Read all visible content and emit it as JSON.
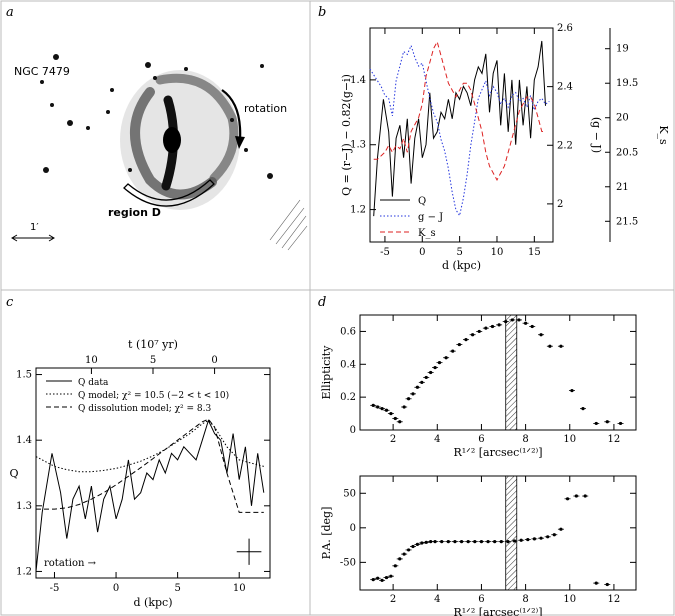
{
  "panels": {
    "a": {
      "letter": "a",
      "galaxy_label": "NGC 7479",
      "rotation_label": "rotation",
      "region_label": "region D",
      "scale_label": "1′"
    },
    "b": {
      "letter": "b"
    },
    "c": {
      "letter": "c"
    },
    "d": {
      "letter": "d"
    }
  },
  "chart_data": [
    {
      "panel": "b",
      "type": "line",
      "xlabel": "d (kpc)",
      "ylabel_left": "Q = (r−J) − 0.82(g−i)",
      "ylabel_right1": "(g − J)",
      "ylabel_right2": "K_s",
      "xlim": [
        -7,
        17.5
      ],
      "ylim_left": [
        1.15,
        1.48
      ],
      "ylim_right1": [
        1.87,
        2.6
      ],
      "ylim_right2": [
        21.8,
        18.7
      ],
      "xticks": [
        -5,
        0,
        5,
        10,
        15
      ],
      "yticks_left": [
        1.2,
        1.3,
        1.4
      ],
      "yticks_right1": [
        2,
        2.2,
        2.4,
        2.6
      ],
      "yticks_right2": [
        19,
        19.5,
        20,
        20.5,
        21,
        21.5
      ],
      "legend": [
        "Q",
        "g − J",
        "K_s"
      ],
      "series": [
        {
          "name": "Q",
          "color": "#000000",
          "dash": "solid",
          "axis": "left",
          "x": [
            -6.5,
            -6,
            -5.2,
            -4.5,
            -4,
            -3.5,
            -3,
            -2.5,
            -2,
            -1.5,
            -1,
            -0.5,
            0,
            0.5,
            1,
            1.5,
            2,
            2.5,
            3,
            3.5,
            4,
            4.5,
            5,
            5.5,
            6,
            6.5,
            7,
            7.5,
            8,
            8.5,
            9,
            9.5,
            10,
            10.5,
            11,
            11.5,
            12,
            12.5,
            13,
            13.5,
            14,
            14.5,
            15,
            15.5,
            16,
            16.5
          ],
          "y": [
            1.19,
            1.28,
            1.37,
            1.32,
            1.22,
            1.31,
            1.33,
            1.28,
            1.34,
            1.24,
            1.31,
            1.34,
            1.28,
            1.3,
            1.38,
            1.31,
            1.32,
            1.35,
            1.34,
            1.37,
            1.34,
            1.38,
            1.37,
            1.39,
            1.38,
            1.36,
            1.4,
            1.42,
            1.41,
            1.44,
            1.35,
            1.41,
            1.43,
            1.33,
            1.41,
            1.32,
            1.4,
            1.3,
            1.4,
            1.33,
            1.39,
            1.31,
            1.4,
            1.42,
            1.46,
            1.36
          ]
        },
        {
          "name": "g − J",
          "color": "#2233dd",
          "dash": "dotted",
          "axis": "right1",
          "x": [
            -7,
            -6.5,
            -6,
            -5.5,
            -5,
            -4.5,
            -4,
            -3.5,
            -3,
            -2.5,
            -2,
            -1.5,
            -1,
            -0.5,
            0,
            0.5,
            1,
            1.5,
            2,
            2.5,
            3,
            3.5,
            4,
            4.5,
            5,
            5.5,
            6,
            6.5,
            7,
            7.5,
            8,
            8.5,
            9,
            9.5,
            10,
            10.5,
            11,
            11.5,
            12,
            12.5,
            13,
            13.5,
            14,
            14.5,
            15,
            15.5,
            16,
            16.5,
            17
          ],
          "y": [
            2.46,
            2.44,
            2.42,
            2.4,
            2.37,
            2.36,
            2.3,
            2.42,
            2.47,
            2.52,
            2.51,
            2.54,
            2.5,
            2.47,
            2.48,
            2.42,
            2.36,
            2.31,
            2.28,
            2.22,
            2.18,
            2.12,
            2.04,
            1.98,
            1.96,
            2.02,
            2.1,
            2.2,
            2.28,
            2.36,
            2.39,
            2.42,
            2.37,
            2.4,
            2.38,
            2.34,
            2.36,
            2.33,
            2.37,
            2.38,
            2.35,
            2.36,
            2.33,
            2.37,
            2.32,
            2.35,
            2.36,
            2.34,
            2.35
          ]
        },
        {
          "name": "K_s",
          "color": "#dd2222",
          "dash": "dashed",
          "axis": "right2",
          "x": [
            -6.5,
            -6,
            -5.5,
            -5,
            -4.5,
            -4,
            -3.5,
            -3,
            -2.5,
            -2,
            -1.5,
            -1,
            -0.5,
            0,
            0.5,
            1,
            1.5,
            2,
            2.5,
            3,
            3.5,
            4,
            4.5,
            5,
            5.5,
            6,
            6.5,
            7,
            7.5,
            8,
            8.5,
            9,
            9.5,
            10,
            10.5,
            11,
            11.5,
            12,
            12.5,
            13,
            13.5,
            14,
            14.5,
            15,
            15.5,
            16,
            16.5
          ],
          "y": [
            20.6,
            20.6,
            20.55,
            20.5,
            20.4,
            20.5,
            20.4,
            20.45,
            20.3,
            20.5,
            20.2,
            20.1,
            20.0,
            19.8,
            19.4,
            19.2,
            19.0,
            18.9,
            19.1,
            19.3,
            19.5,
            19.6,
            19.7,
            19.6,
            19.5,
            19.5,
            19.6,
            19.8,
            20.0,
            20.2,
            20.5,
            20.7,
            20.8,
            20.9,
            20.8,
            20.7,
            20.5,
            20.3,
            20.1,
            19.9,
            19.8,
            19.7,
            19.7,
            19.8,
            20.0,
            20.2,
            20.2
          ]
        }
      ]
    },
    {
      "panel": "c",
      "type": "line",
      "xlabel": "d (kpc)",
      "ylabel": "Q",
      "top_xlabel": "t (10⁷ yr)",
      "xlim": [
        -6.5,
        12.5
      ],
      "ylim": [
        1.19,
        1.51
      ],
      "xticks": [
        -5,
        0,
        5,
        10
      ],
      "yticks": [
        1.2,
        1.3,
        1.4,
        1.5
      ],
      "top_xticks": [
        10,
        5,
        0
      ],
      "top_xticks_d": [
        -2,
        3,
        8
      ],
      "legend": [
        "Q data",
        "Q model; χ² = 10.5 (−2 < t < 10)",
        "Q dissolution model; χ² = 8.3"
      ],
      "annotation": "rotation →",
      "errorbar": {
        "x": 10.8,
        "y": 1.23,
        "dx": 1,
        "dy": 0.02
      },
      "series": [
        {
          "name": "Q data",
          "dash": "solid",
          "x": [
            -6.5,
            -6,
            -5.2,
            -4.5,
            -4,
            -3.5,
            -3,
            -2.5,
            -2,
            -1.5,
            -1,
            -0.5,
            0,
            0.5,
            1,
            1.5,
            2,
            2.5,
            3,
            3.5,
            4,
            4.5,
            5,
            5.5,
            6,
            6.5,
            7,
            7.5,
            8,
            8.5,
            9,
            9.5,
            10,
            10.5,
            11,
            11.5,
            12
          ],
          "y": [
            1.2,
            1.29,
            1.38,
            1.32,
            1.25,
            1.31,
            1.33,
            1.28,
            1.33,
            1.26,
            1.31,
            1.33,
            1.28,
            1.31,
            1.37,
            1.31,
            1.32,
            1.35,
            1.34,
            1.37,
            1.35,
            1.38,
            1.37,
            1.39,
            1.38,
            1.37,
            1.4,
            1.43,
            1.41,
            1.4,
            1.35,
            1.41,
            1.34,
            1.39,
            1.3,
            1.38,
            1.32
          ]
        },
        {
          "name": "Q model",
          "dash": "dotted",
          "x": [
            -6.5,
            -5,
            -4,
            -3,
            -2,
            -1,
            0,
            1,
            2,
            3,
            4,
            5,
            6,
            7,
            7.5,
            8,
            9,
            10,
            11,
            12
          ],
          "y": [
            1.375,
            1.36,
            1.355,
            1.352,
            1.352,
            1.354,
            1.357,
            1.362,
            1.368,
            1.376,
            1.386,
            1.398,
            1.41,
            1.425,
            1.43,
            1.42,
            1.39,
            1.37,
            1.365,
            1.36
          ]
        },
        {
          "name": "Q dissolution model",
          "dash": "dashed",
          "x": [
            -6.5,
            -5,
            -4,
            -3,
            -2,
            -1,
            0,
            1,
            2,
            3,
            4,
            5,
            6,
            7,
            7.5,
            8,
            9,
            10,
            11,
            12
          ],
          "y": [
            1.295,
            1.295,
            1.297,
            1.302,
            1.31,
            1.32,
            1.332,
            1.345,
            1.358,
            1.372,
            1.386,
            1.4,
            1.414,
            1.428,
            1.432,
            1.42,
            1.35,
            1.29,
            1.29,
            1.29
          ]
        }
      ]
    },
    {
      "panel": "d-top",
      "type": "scatter",
      "xlabel": "R¹ᐟ² [arcsec⁽¹ᐟ²⁾]",
      "ylabel": "Ellipticity",
      "xlim": [
        0.5,
        13
      ],
      "ylim": [
        0,
        0.7
      ],
      "xticks": [
        2,
        4,
        6,
        8,
        10,
        12
      ],
      "yticks": [
        0,
        0.2,
        0.4,
        0.6
      ],
      "shaded_band_x": [
        7.1,
        7.6
      ],
      "x": [
        1.1,
        1.3,
        1.5,
        1.7,
        1.9,
        2.1,
        2.3,
        2.5,
        2.7,
        2.9,
        3.1,
        3.3,
        3.5,
        3.7,
        3.9,
        4.1,
        4.4,
        4.7,
        5.0,
        5.3,
        5.6,
        5.9,
        6.2,
        6.5,
        6.8,
        7.1,
        7.4,
        7.7,
        8.0,
        8.3,
        8.7,
        9.1,
        9.6,
        10.1,
        10.6,
        11.2,
        11.7,
        12.3
      ],
      "y": [
        0.15,
        0.14,
        0.13,
        0.12,
        0.1,
        0.07,
        0.05,
        0.14,
        0.19,
        0.22,
        0.26,
        0.29,
        0.32,
        0.35,
        0.38,
        0.41,
        0.44,
        0.48,
        0.52,
        0.55,
        0.58,
        0.6,
        0.62,
        0.63,
        0.64,
        0.66,
        0.67,
        0.67,
        0.65,
        0.63,
        0.58,
        0.51,
        0.51,
        0.24,
        0.13,
        0.04,
        0.05,
        0.04
      ]
    },
    {
      "panel": "d-bottom",
      "type": "scatter",
      "xlabel": "R¹ᐟ² [arcsec⁽¹ᐟ²⁾]",
      "ylabel": "P.A. [deg]",
      "xlim": [
        0.5,
        13
      ],
      "ylim": [
        -90,
        75
      ],
      "xticks": [
        2,
        4,
        6,
        8,
        10,
        12
      ],
      "yticks": [
        -50,
        0,
        50
      ],
      "shaded_band_x": [
        7.1,
        7.6
      ],
      "x": [
        1.1,
        1.3,
        1.5,
        1.7,
        1.9,
        2.1,
        2.3,
        2.5,
        2.7,
        2.9,
        3.1,
        3.3,
        3.5,
        3.7,
        3.9,
        4.2,
        4.5,
        4.8,
        5.1,
        5.4,
        5.7,
        6.0,
        6.3,
        6.6,
        6.9,
        7.2,
        7.5,
        7.8,
        8.1,
        8.4,
        8.7,
        9.0,
        9.3,
        9.6,
        9.9,
        10.3,
        10.7,
        11.2,
        11.7
      ],
      "y": [
        -75,
        -73,
        -76,
        -72,
        -70,
        -55,
        -45,
        -38,
        -32,
        -27,
        -24,
        -22,
        -21,
        -20,
        -20,
        -20,
        -20,
        -20,
        -20,
        -20,
        -20,
        -20,
        -20,
        -20,
        -20,
        -20,
        -19,
        -18,
        -17,
        -16,
        -15,
        -13,
        -10,
        -2,
        42,
        46,
        46,
        -80,
        -82
      ]
    }
  ]
}
